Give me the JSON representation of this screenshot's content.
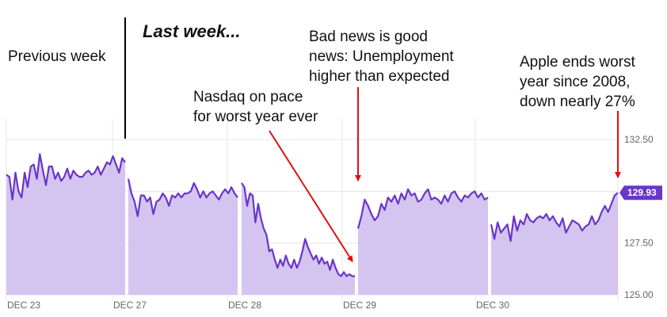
{
  "annotations": {
    "previous_week": "Previous week",
    "last_week": "Last week...",
    "nasdaq": "Nasdaq on pace\nfor worst year ever",
    "bad_news": "Bad news is good\nnews: Unemployment\nhigher than expected",
    "apple": "Apple ends worst\nyear since 2008,\ndown nearly 27%"
  },
  "colors": {
    "line": "#6a35c8",
    "fill": "#d4c5f0",
    "arrow": "#e01010",
    "badge": "#6a35c8",
    "divider": "#000000"
  },
  "chart_data": {
    "type": "area",
    "title": "",
    "xlabel": "",
    "ylabel": "",
    "ylim": [
      125.0,
      133.5
    ],
    "ytick_labels": [
      "132.50",
      "130.00",
      "127.50",
      "125.00"
    ],
    "ytick_values": [
      132.5,
      130.0,
      127.5,
      125.0
    ],
    "xtick_labels": [
      "DEC 23",
      "DEC 27",
      "DEC 28",
      "DEC 29",
      "DEC 30"
    ],
    "current_price_label": "129.93",
    "current_price": 129.93,
    "grid": true,
    "series": [
      {
        "segments": [
          {
            "session": "DEC 23",
            "values": [
              130.8,
              130.7,
              129.6,
              130.9,
              130.0,
              129.7,
              130.9,
              130.2,
              131.2,
              131.3,
              130.6,
              131.8,
              131.0,
              130.3,
              131.2,
              131.2,
              130.6,
              130.9,
              130.5,
              130.7,
              131.1,
              130.6,
              131.0,
              130.8,
              130.7,
              130.7,
              130.9,
              131.0,
              130.8,
              130.9,
              131.2,
              130.8,
              131.1,
              131.4,
              131.3,
              131.7,
              131.3,
              130.9,
              131.6,
              131.4
            ]
          },
          {
            "session": "DEC 27",
            "values": [
              130.6,
              129.9,
              129.5,
              128.8,
              129.8,
              129.8,
              129.5,
              129.7,
              128.9,
              129.5,
              129.6,
              129.9,
              129.7,
              129.3,
              129.8,
              129.7,
              129.9,
              129.7,
              129.9,
              129.9,
              130.0,
              130.4,
              130.1,
              129.7,
              130.0,
              129.7,
              129.9,
              130.0,
              129.8,
              129.6,
              129.9,
              130.1,
              129.9,
              130.2,
              129.9,
              129.7
            ]
          },
          {
            "session": "DEC 28",
            "values": [
              130.4,
              130.2,
              129.3,
              129.9,
              129.8,
              128.5,
              129.4,
              128.7,
              128.2,
              127.9,
              127.1,
              127.2,
              126.7,
              126.3,
              126.7,
              126.4,
              126.9,
              126.5,
              126.3,
              126.7,
              126.3,
              126.6,
              127.1,
              127.7,
              127.3,
              127.0,
              126.7,
              126.9,
              126.5,
              126.8,
              126.5,
              126.6,
              126.2,
              126.7,
              126.3,
              126.0,
              125.9,
              126.1,
              125.9,
              126.0,
              125.9,
              125.9
            ]
          },
          {
            "session": "DEC 29",
            "values": [
              128.2,
              128.8,
              129.6,
              129.3,
              128.9,
              128.6,
              128.8,
              129.4,
              129.1,
              129.7,
              129.5,
              129.8,
              129.4,
              129.9,
              129.6,
              130.1,
              129.8,
              129.9,
              129.5,
              129.6,
              129.9,
              130.1,
              129.6,
              129.7,
              129.6,
              129.4,
              129.8,
              129.5,
              129.9,
              130.0,
              129.7,
              129.5,
              129.8,
              129.7,
              129.9,
              130.0,
              129.7,
              129.9,
              129.6,
              129.7
            ]
          },
          {
            "session": "DEC 30",
            "values": [
              128.4,
              127.7,
              128.5,
              128.0,
              128.2,
              128.4,
              127.6,
              128.8,
              128.1,
              128.6,
              128.4,
              128.9,
              128.6,
              128.5,
              128.7,
              128.8,
              128.7,
              128.9,
              128.6,
              128.8,
              128.5,
              128.3,
              128.7,
              128.0,
              128.3,
              128.6,
              128.5,
              128.4,
              128.1,
              128.3,
              128.4,
              128.8,
              128.4,
              128.6,
              129.0,
              129.3,
              129.0,
              129.4,
              129.8,
              129.93
            ]
          }
        ]
      }
    ]
  }
}
